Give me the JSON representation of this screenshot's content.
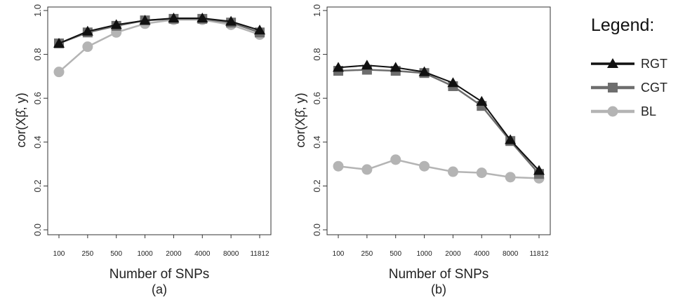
{
  "legend": {
    "title": "Legend:",
    "items": [
      {
        "label": "RGT",
        "color": "#111111",
        "marker": "triangle"
      },
      {
        "label": "CGT",
        "color": "#6e6e6e",
        "marker": "square"
      },
      {
        "label": "BL",
        "color": "#b4b4b4",
        "marker": "circle"
      }
    ]
  },
  "chart_data": [
    {
      "type": "line",
      "panel_label": "(a)",
      "xlabel": "Number of SNPs",
      "ylabel": "cor(Xβ̂, y)",
      "categories": [
        "100",
        "250",
        "500",
        "1000",
        "2000",
        "4000",
        "8000",
        "11812"
      ],
      "ylim": [
        0,
        1
      ],
      "yticks": [
        "0.0",
        "0.2",
        "0.4",
        "0.6",
        "0.8",
        "1.0"
      ],
      "grid": false,
      "series": [
        {
          "name": "RGT",
          "values": [
            0.85,
            0.905,
            0.935,
            0.955,
            0.965,
            0.965,
            0.95,
            0.91
          ]
        },
        {
          "name": "CGT",
          "values": [
            0.85,
            0.9,
            0.93,
            0.955,
            0.962,
            0.962,
            0.945,
            0.9
          ]
        },
        {
          "name": "BL",
          "values": [
            0.72,
            0.835,
            0.9,
            0.94,
            0.958,
            0.958,
            0.935,
            0.89
          ]
        }
      ]
    },
    {
      "type": "line",
      "panel_label": "(b)",
      "xlabel": "Number of SNPs",
      "ylabel": "cor(Xβ̂, y)",
      "categories": [
        "100",
        "250",
        "500",
        "1000",
        "2000",
        "4000",
        "8000",
        "11812"
      ],
      "ylim": [
        0,
        1
      ],
      "yticks": [
        "0.0",
        "0.2",
        "0.4",
        "0.6",
        "0.8",
        "1.0"
      ],
      "grid": false,
      "series": [
        {
          "name": "RGT",
          "values": [
            0.74,
            0.75,
            0.74,
            0.72,
            0.67,
            0.585,
            0.41,
            0.27
          ]
        },
        {
          "name": "CGT",
          "values": [
            0.725,
            0.73,
            0.725,
            0.715,
            0.655,
            0.565,
            0.405,
            0.255
          ]
        },
        {
          "name": "BL",
          "values": [
            0.29,
            0.275,
            0.32,
            0.29,
            0.265,
            0.26,
            0.24,
            0.235
          ]
        }
      ]
    }
  ]
}
